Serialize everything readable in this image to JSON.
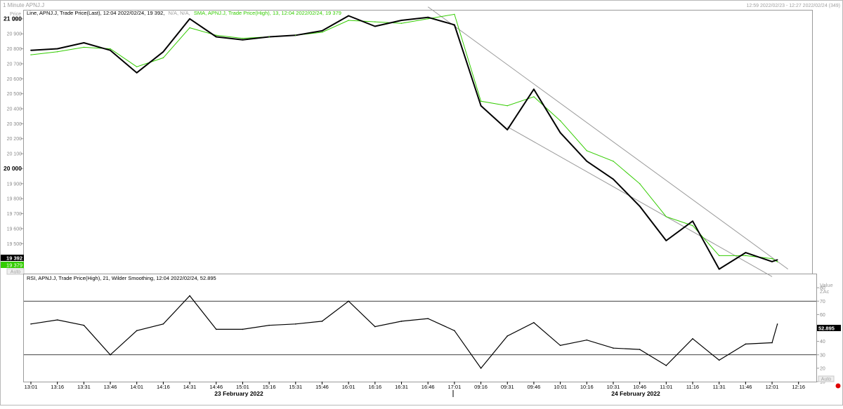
{
  "window": {
    "title": "1 Minute APNJ.J",
    "range_info": "12:59 2022/02/23 - 12:27 2022/02/24 (349)"
  },
  "price_panel": {
    "axis_title": "Price",
    "axis_unit": "ZAc",
    "legend_line": "Line, APNJ.J, Trade Price(Last), 12:04 2022/02/24, 19 392,",
    "legend_na": "N/A, N/A,",
    "legend_sma": "SMA, APNJ.J, Trade Price(High), 13, 12:04 2022/02/24, 19 379",
    "last_price_tag": "19 392",
    "sma_price_tag": "19 379",
    "auto_label": "Auto"
  },
  "rsi_panel": {
    "legend": "RSI, APNJ.J, Trade Price(High), 21, Wilder Smoothing, 12:04 2022/02/24, 52.895",
    "axis_title": "Value",
    "axis_unit": "ZAc",
    "last_value_tag": "52.895",
    "auto_label": "Auto"
  },
  "x_axis": {
    "ticks": [
      "13:01",
      "13:16",
      "13:31",
      "13:46",
      "14:01",
      "14:16",
      "14:31",
      "14:46",
      "15:01",
      "15:16",
      "15:31",
      "15:46",
      "16:01",
      "16:16",
      "16:31",
      "16:46",
      "17:01",
      "09:16",
      "09:31",
      "09:46",
      "10:01",
      "10:16",
      "10:31",
      "10:46",
      "11:01",
      "11:16",
      "11:31",
      "11:46",
      "12:01",
      "12:16"
    ],
    "date_labels": [
      "23 February 2022",
      "24 February 2022"
    ]
  },
  "colors": {
    "price_line": "#000000",
    "sma_line": "#33cc00",
    "channel_lines": "#9a9a9a",
    "rsi_line": "#000000",
    "status_dot": "#e00000"
  },
  "chart_data": [
    {
      "type": "line",
      "title": "",
      "ylim": [
        19300,
        21060
      ],
      "y_ticks": [
        {
          "v": 21000,
          "label": "21 000",
          "major": true
        },
        {
          "v": 20900,
          "label": "20 900"
        },
        {
          "v": 20800,
          "label": "20 800"
        },
        {
          "v": 20700,
          "label": "20 700"
        },
        {
          "v": 20600,
          "label": "20 600"
        },
        {
          "v": 20500,
          "label": "20 500"
        },
        {
          "v": 20400,
          "label": "20 400"
        },
        {
          "v": 20300,
          "label": "20 300"
        },
        {
          "v": 20200,
          "label": "20 200"
        },
        {
          "v": 20100,
          "label": "20 100"
        },
        {
          "v": 20000,
          "label": "20 000",
          "major": true
        },
        {
          "v": 19900,
          "label": "19 900"
        },
        {
          "v": 19800,
          "label": "19 800"
        },
        {
          "v": 19700,
          "label": "19 700"
        },
        {
          "v": 19600,
          "label": "19 600"
        },
        {
          "v": 19500,
          "label": "19 500"
        }
      ],
      "x": [
        "13:01",
        "13:16",
        "13:31",
        "13:46",
        "14:01",
        "14:16",
        "14:31",
        "14:46",
        "15:01",
        "15:16",
        "15:31",
        "15:46",
        "16:01",
        "16:16",
        "16:31",
        "16:46",
        "17:01",
        "09:16",
        "09:31",
        "09:46",
        "10:01",
        "10:16",
        "10:31",
        "10:46",
        "11:01",
        "11:16",
        "11:31",
        "11:46",
        "12:01",
        "12:04"
      ],
      "series": [
        {
          "values": [
            20790,
            20800,
            20840,
            20790,
            20640,
            20780,
            21000,
            20880,
            20860,
            20880,
            20890,
            20920,
            21020,
            20950,
            20990,
            21010,
            20960,
            20420,
            20260,
            20530,
            20240,
            20050,
            19930,
            19750,
            19520,
            19650,
            19330,
            19440,
            19380,
            19392
          ]
        },
        {
          "values": [
            20760,
            20780,
            20810,
            20800,
            20680,
            20740,
            20940,
            20890,
            20870,
            20880,
            20890,
            20910,
            20990,
            20980,
            20970,
            21000,
            21030,
            20450,
            20420,
            20480,
            20320,
            20120,
            20050,
            19900,
            19680,
            19620,
            19420,
            19420,
            19400,
            19379
          ]
        }
      ],
      "annotations": [
        {
          "type": "trend_channel",
          "upper": [
            [
              "16:46",
              21080
            ],
            [
              "12:10",
              19330
            ]
          ],
          "lower": [
            [
              "09:31",
              20280
            ],
            [
              "12:01",
              19280
            ]
          ]
        }
      ]
    },
    {
      "type": "line",
      "title": "",
      "ylim": [
        10,
        90
      ],
      "y_ticks": [
        80,
        70,
        60,
        50,
        40,
        30,
        20,
        10
      ],
      "reference_lines": [
        70,
        30
      ],
      "x": [
        "13:01",
        "13:16",
        "13:31",
        "13:46",
        "14:01",
        "14:16",
        "14:31",
        "14:46",
        "15:01",
        "15:16",
        "15:31",
        "15:46",
        "16:01",
        "16:16",
        "16:31",
        "16:46",
        "17:01",
        "09:16",
        "09:31",
        "09:46",
        "10:01",
        "10:16",
        "10:31",
        "10:46",
        "11:01",
        "11:16",
        "11:31",
        "11:46",
        "12:01",
        "12:04"
      ],
      "series": [
        {
          "values": [
            53,
            56,
            52,
            30,
            48,
            53,
            74,
            49,
            49,
            52,
            53,
            55,
            70,
            51,
            55,
            57,
            48,
            20,
            44,
            54,
            37,
            41,
            35,
            34,
            22,
            42,
            26,
            38,
            39,
            52.895
          ]
        }
      ]
    }
  ]
}
